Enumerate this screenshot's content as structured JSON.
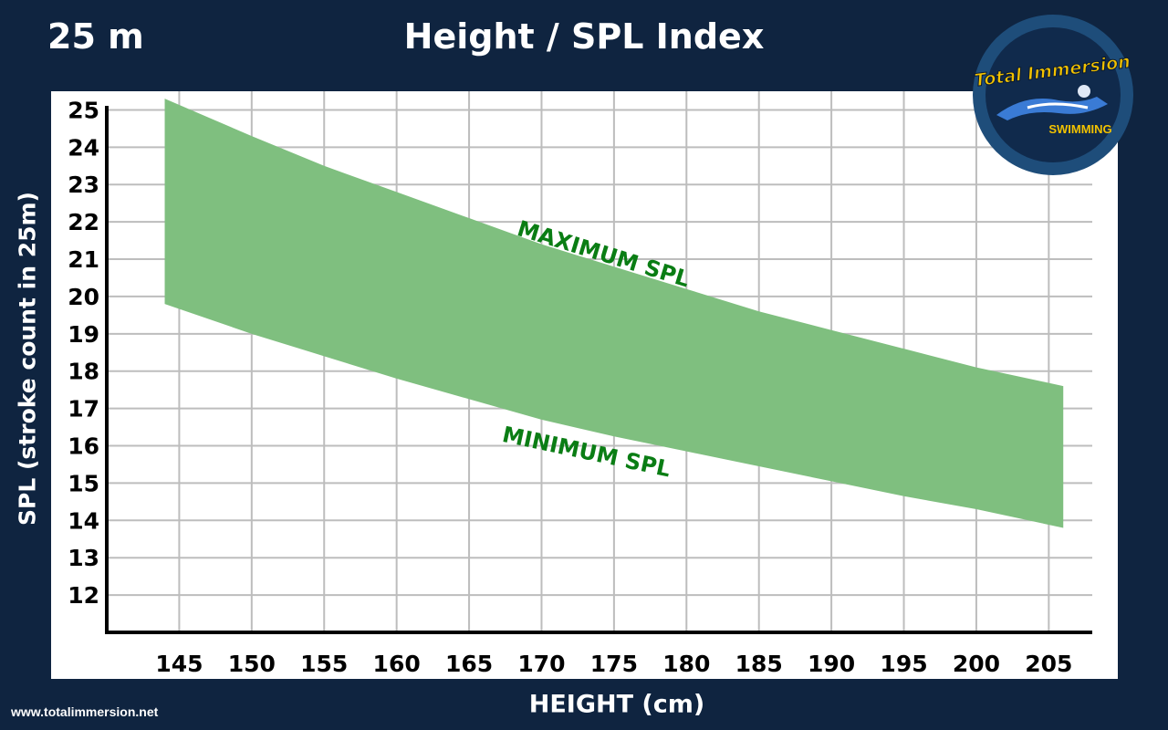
{
  "corner_label": "25 m",
  "website": "www.totalimmersion.net",
  "logo": {
    "line1": "Total Immersion",
    "line2": "SWIMMING"
  },
  "colors": {
    "background": "#0f2440",
    "band_fill": "#7fbf7f",
    "annotation": "#0a7d14",
    "grid": "#bdbdbd",
    "logo_ring": "#1e4d7a",
    "logo_text": "#f2c200"
  },
  "chart_data": {
    "type": "area",
    "title": "Height / SPL Index",
    "xlabel": "HEIGHT (cm)",
    "ylabel": "SPL (stroke count in 25m)",
    "xlim": [
      140,
      208
    ],
    "ylim": [
      11,
      25.5
    ],
    "xticks": [
      "145",
      "150",
      "155",
      "160",
      "165",
      "170",
      "175",
      "180",
      "185",
      "190",
      "195",
      "200",
      "205"
    ],
    "yticks": [
      "12",
      "13",
      "14",
      "15",
      "16",
      "17",
      "18",
      "19",
      "20",
      "21",
      "22",
      "23",
      "24",
      "25"
    ],
    "grid": true,
    "legend": "none",
    "x": [
      144,
      150,
      155,
      160,
      165,
      170,
      175,
      180,
      185,
      190,
      195,
      200,
      206
    ],
    "series": [
      {
        "name": "MAXIMUM SPL",
        "values": [
          25.3,
          24.3,
          23.5,
          22.8,
          22.1,
          21.4,
          20.8,
          20.2,
          19.6,
          19.1,
          18.6,
          18.1,
          17.6
        ]
      },
      {
        "name": "MINIMUM SPL",
        "values": [
          19.8,
          19.0,
          18.4,
          17.8,
          17.25,
          16.7,
          16.25,
          15.85,
          15.45,
          15.05,
          14.65,
          14.3,
          13.8
        ]
      }
    ]
  }
}
